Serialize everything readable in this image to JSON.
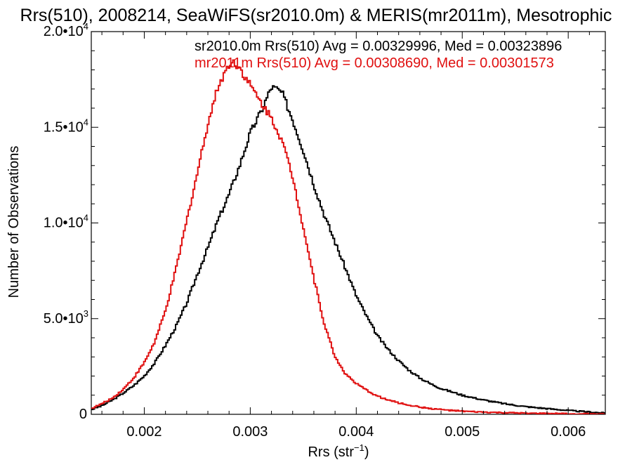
{
  "chart_data": {
    "type": "line",
    "title": "Rrs(510), 2008214, SeaWiFS(sr2010.0m) & MERIS(mr2011m), Mesotrophic",
    "xlabel": "Rrs (str",
    "xlabel_sup": "−1",
    "xlabel_suffix": ")",
    "ylabel": "Number of Observations",
    "xlim": [
      0.0015,
      0.00635
    ],
    "ylim": [
      0,
      20000
    ],
    "x_ticks": [
      {
        "value": 0.002,
        "label": "0.002"
      },
      {
        "value": 0.003,
        "label": "0.003"
      },
      {
        "value": 0.004,
        "label": "0.004"
      },
      {
        "value": 0.005,
        "label": "0.005"
      },
      {
        "value": 0.006,
        "label": "0.006"
      }
    ],
    "y_ticks": [
      {
        "value": 0,
        "label": "0",
        "exp": ""
      },
      {
        "value": 5000,
        "label": "5.0•10",
        "exp": "3"
      },
      {
        "value": 10000,
        "label": "1.0•10",
        "exp": "4"
      },
      {
        "value": 15000,
        "label": "1.5•10",
        "exp": "4"
      },
      {
        "value": 20000,
        "label": "2.0•10",
        "exp": "4"
      }
    ],
    "grid": false,
    "series": [
      {
        "name": "sr2010.0m Rrs(510) Avg = 0.00329996, Med = 0.00323896",
        "color": "#000000",
        "x": [
          0.0015,
          0.0016,
          0.0017,
          0.0018,
          0.0019,
          0.002,
          0.0021,
          0.0022,
          0.0023,
          0.0024,
          0.0025,
          0.0026,
          0.0027,
          0.0028,
          0.0029,
          0.003,
          0.0031,
          0.0032,
          0.00325,
          0.0033,
          0.0034,
          0.0035,
          0.0036,
          0.0037,
          0.0038,
          0.0039,
          0.004,
          0.0041,
          0.0042,
          0.0043,
          0.0044,
          0.0045,
          0.0046,
          0.0047,
          0.0048,
          0.005,
          0.0052,
          0.0054,
          0.0056,
          0.0058,
          0.006,
          0.00635
        ],
        "y": [
          250,
          450,
          750,
          1100,
          1500,
          2000,
          2700,
          3600,
          4600,
          5800,
          7300,
          8700,
          10200,
          11500,
          13000,
          14700,
          15800,
          17100,
          17000,
          16800,
          15400,
          13800,
          12000,
          10400,
          9000,
          7600,
          6200,
          5100,
          4100,
          3400,
          2800,
          2300,
          1900,
          1600,
          1350,
          1000,
          750,
          550,
          400,
          300,
          200,
          60
        ]
      },
      {
        "name": "mr2011m Rrs(510) Avg = 0.00308690, Med = 0.00301573",
        "color": "#e01010",
        "x": [
          0.0015,
          0.0016,
          0.0017,
          0.0018,
          0.0019,
          0.002,
          0.0021,
          0.0022,
          0.0023,
          0.0024,
          0.0025,
          0.0026,
          0.0027,
          0.0028,
          0.00285,
          0.0029,
          0.003,
          0.0031,
          0.0032,
          0.0033,
          0.0034,
          0.0035,
          0.0036,
          0.0037,
          0.0038,
          0.0039,
          0.004,
          0.0041,
          0.0042,
          0.0043,
          0.0044,
          0.0045,
          0.0046,
          0.0047,
          0.0048,
          0.0049,
          0.005,
          0.0052,
          0.0054,
          0.0056,
          0.0058,
          0.006,
          0.00635
        ],
        "y": [
          300,
          550,
          850,
          1300,
          1900,
          2700,
          3800,
          5400,
          7600,
          10100,
          12600,
          15200,
          17200,
          18300,
          18400,
          18100,
          17200,
          16300,
          15500,
          14300,
          12400,
          9800,
          7100,
          4700,
          3000,
          2100,
          1600,
          1250,
          950,
          750,
          600,
          480,
          380,
          300,
          250,
          200,
          160,
          110,
          80,
          55,
          40,
          25,
          15
        ]
      }
    ]
  }
}
